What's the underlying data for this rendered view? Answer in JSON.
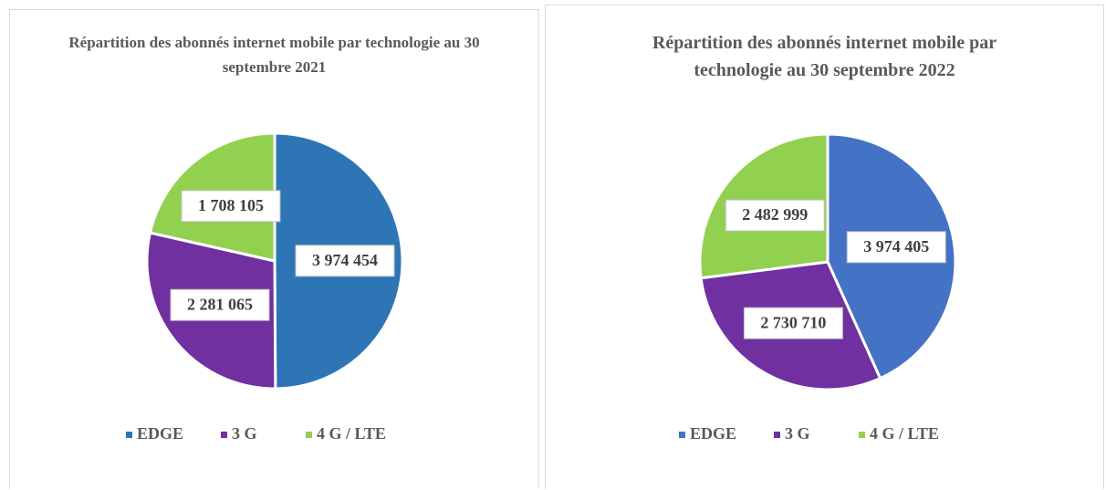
{
  "chart_data": [
    {
      "type": "pie",
      "title": "Répartition des abonnés internet mobile par technologie au 30 septembre 2021",
      "categories": [
        "EDGE",
        "3 G",
        "4 G / LTE"
      ],
      "values": [
        3974454,
        2281065,
        1708105
      ],
      "value_labels": [
        "3 974 454",
        "2 281 065",
        "1 708 105"
      ],
      "colors": [
        "#2e75b6",
        "#7030a0",
        "#92d050"
      ],
      "legend": "bottom"
    },
    {
      "type": "pie",
      "title": "Répartition des abonnés internet mobile par technologie au 30 septembre 2022",
      "categories": [
        "EDGE",
        "3 G",
        "4 G / LTE"
      ],
      "values": [
        3974405,
        2730710,
        2482999
      ],
      "value_labels": [
        "3 974 405",
        "2 730 710",
        "2 482 999"
      ],
      "colors": [
        "#4472c4",
        "#7030a0",
        "#92d050"
      ],
      "legend": "bottom"
    }
  ]
}
